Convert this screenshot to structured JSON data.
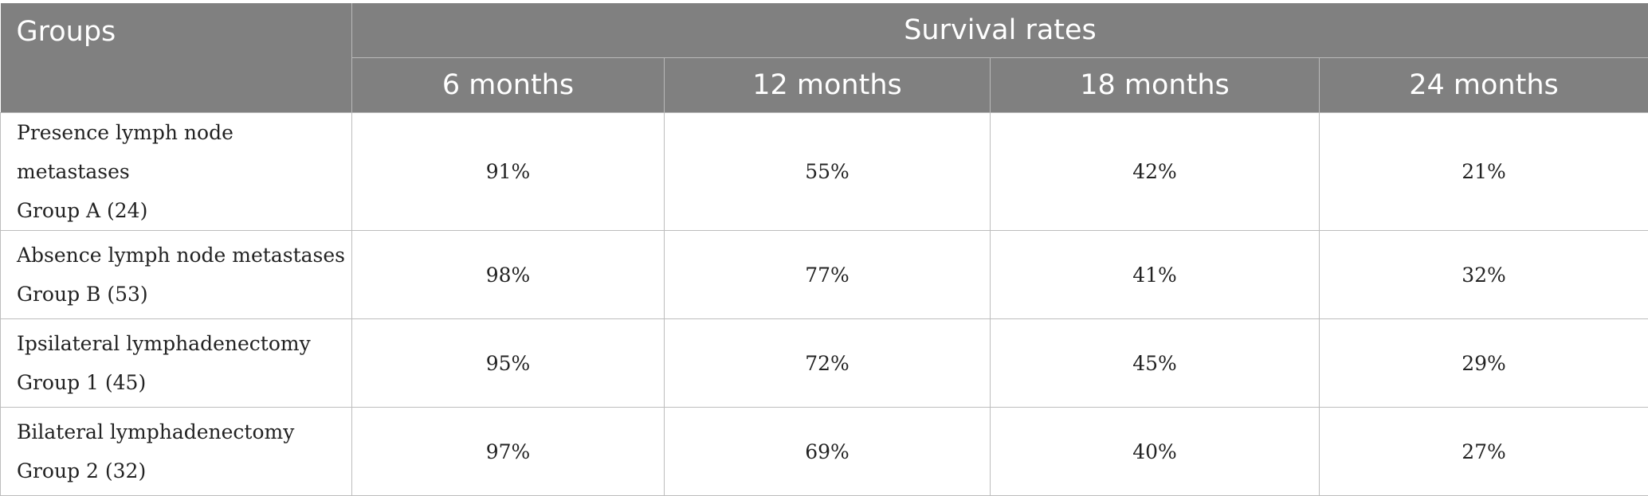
{
  "table": {
    "groups_header": "Groups",
    "survival_header": "Survival rates",
    "periods": [
      "6 months",
      "12 months",
      "18 months",
      "24 months"
    ],
    "rows": [
      {
        "line1": "Presence lymph node metastases",
        "line2": "Group A (24)",
        "values": [
          "91%",
          "55%",
          "42%",
          "21%"
        ]
      },
      {
        "line1": "Absence lymph node metastases",
        "line2": "Group B (53)",
        "values": [
          "98%",
          "77%",
          "41%",
          "32%"
        ]
      },
      {
        "line1": "Ipsilateral lymphadenectomy",
        "line2": "Group 1 (45)",
        "values": [
          "95%",
          "72%",
          "45%",
          "29%"
        ]
      },
      {
        "line1": "Bilateral lymphadenectomy",
        "line2": "Group 2 (32)",
        "values": [
          "97%",
          "69%",
          "40%",
          "27%"
        ]
      }
    ],
    "colors": {
      "header_bg": "#808080",
      "header_text": "#ffffff",
      "grid": "#bdbdbd"
    }
  }
}
